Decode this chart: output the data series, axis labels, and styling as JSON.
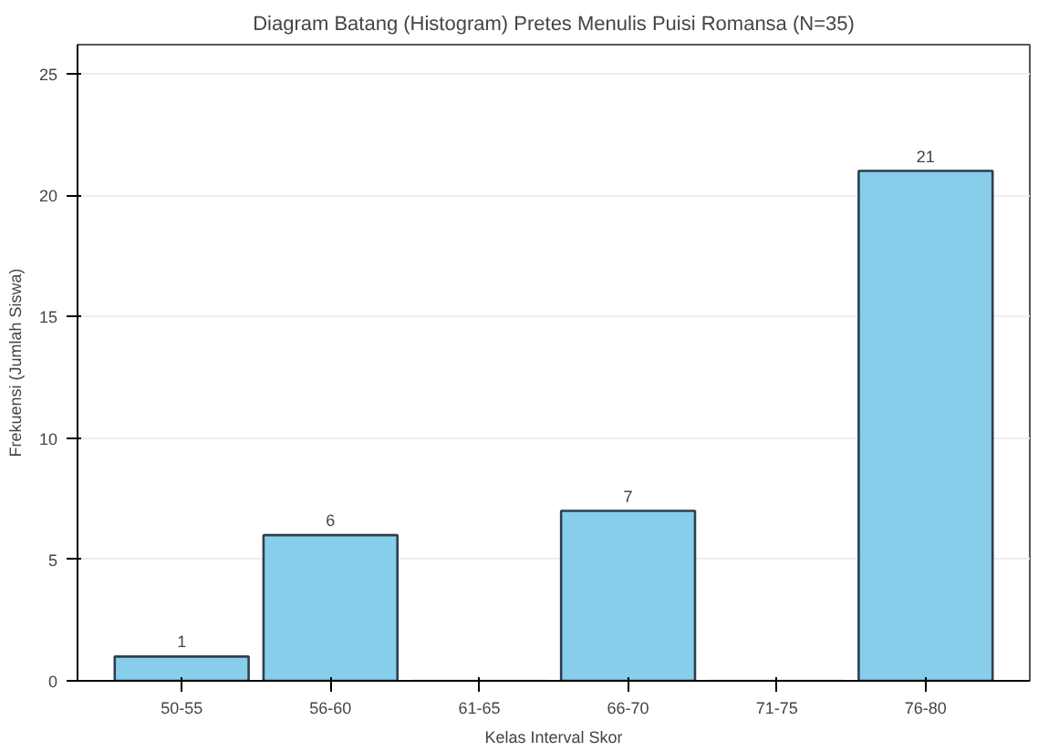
{
  "chart_data": {
    "type": "bar",
    "title": "Diagram Batang (Histogram) Pretes Menulis Puisi Romansa (N=35)",
    "xlabel": "Kelas Interval Skor",
    "ylabel": "Frekuensi (Jumlah Siswa)",
    "categories": [
      "50-55",
      "56-60",
      "61-65",
      "66-70",
      "71-75",
      "76-80"
    ],
    "values": [
      1,
      6,
      0,
      7,
      0,
      21
    ],
    "value_labels": [
      "1",
      "6",
      null,
      "7",
      null,
      "21"
    ],
    "color": "#87ceeb",
    "ylim": [
      0,
      26.2
    ],
    "yticks": [
      0,
      5,
      10,
      15,
      20,
      25
    ],
    "grid": "y"
  }
}
